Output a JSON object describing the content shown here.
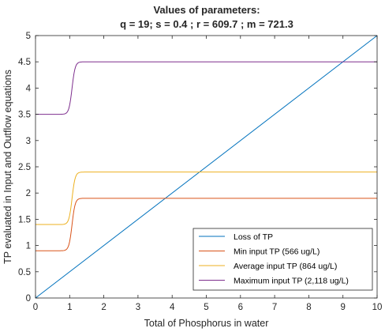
{
  "chart_data": {
    "type": "line",
    "title": "Values of parameters:",
    "subtitle": "q = 19; s = 0.4 ; r = 609.7 ; m = 721.3",
    "xlabel": "Total of Phosphorus in water",
    "ylabel": "TP evaluated in Input and Outflow equations",
    "xlim": [
      0,
      10
    ],
    "ylim": [
      0,
      5
    ],
    "xticks": [
      "0",
      "1",
      "2",
      "3",
      "4",
      "5",
      "6",
      "7",
      "8",
      "9",
      "10"
    ],
    "yticks": [
      "0",
      "0.5",
      "1",
      "1.5",
      "2",
      "2.5",
      "3",
      "3.5",
      "4",
      "4.5",
      "5"
    ],
    "grid": false,
    "legend_position": "bottom-right",
    "series": [
      {
        "name": "Loss of TP",
        "color": "#0072BD",
        "kind": "linear",
        "x": [
          0,
          10
        ],
        "y": [
          0,
          5
        ]
      },
      {
        "name": "Min input TP (566 ug/L)",
        "color": "#D95319",
        "kind": "sigmoid",
        "low": 0.9,
        "high": 1.9,
        "mid": 1.07,
        "steep": 22
      },
      {
        "name": "Average input TP (864 ug/L)",
        "color": "#EDB120",
        "kind": "sigmoid",
        "low": 1.4,
        "high": 2.4,
        "mid": 1.07,
        "steep": 22
      },
      {
        "name": "Maximum input TP (2,118 ug/L)",
        "color": "#7E2F8E",
        "kind": "sigmoid",
        "low": 3.5,
        "high": 4.5,
        "mid": 1.07,
        "steep": 22
      }
    ]
  }
}
